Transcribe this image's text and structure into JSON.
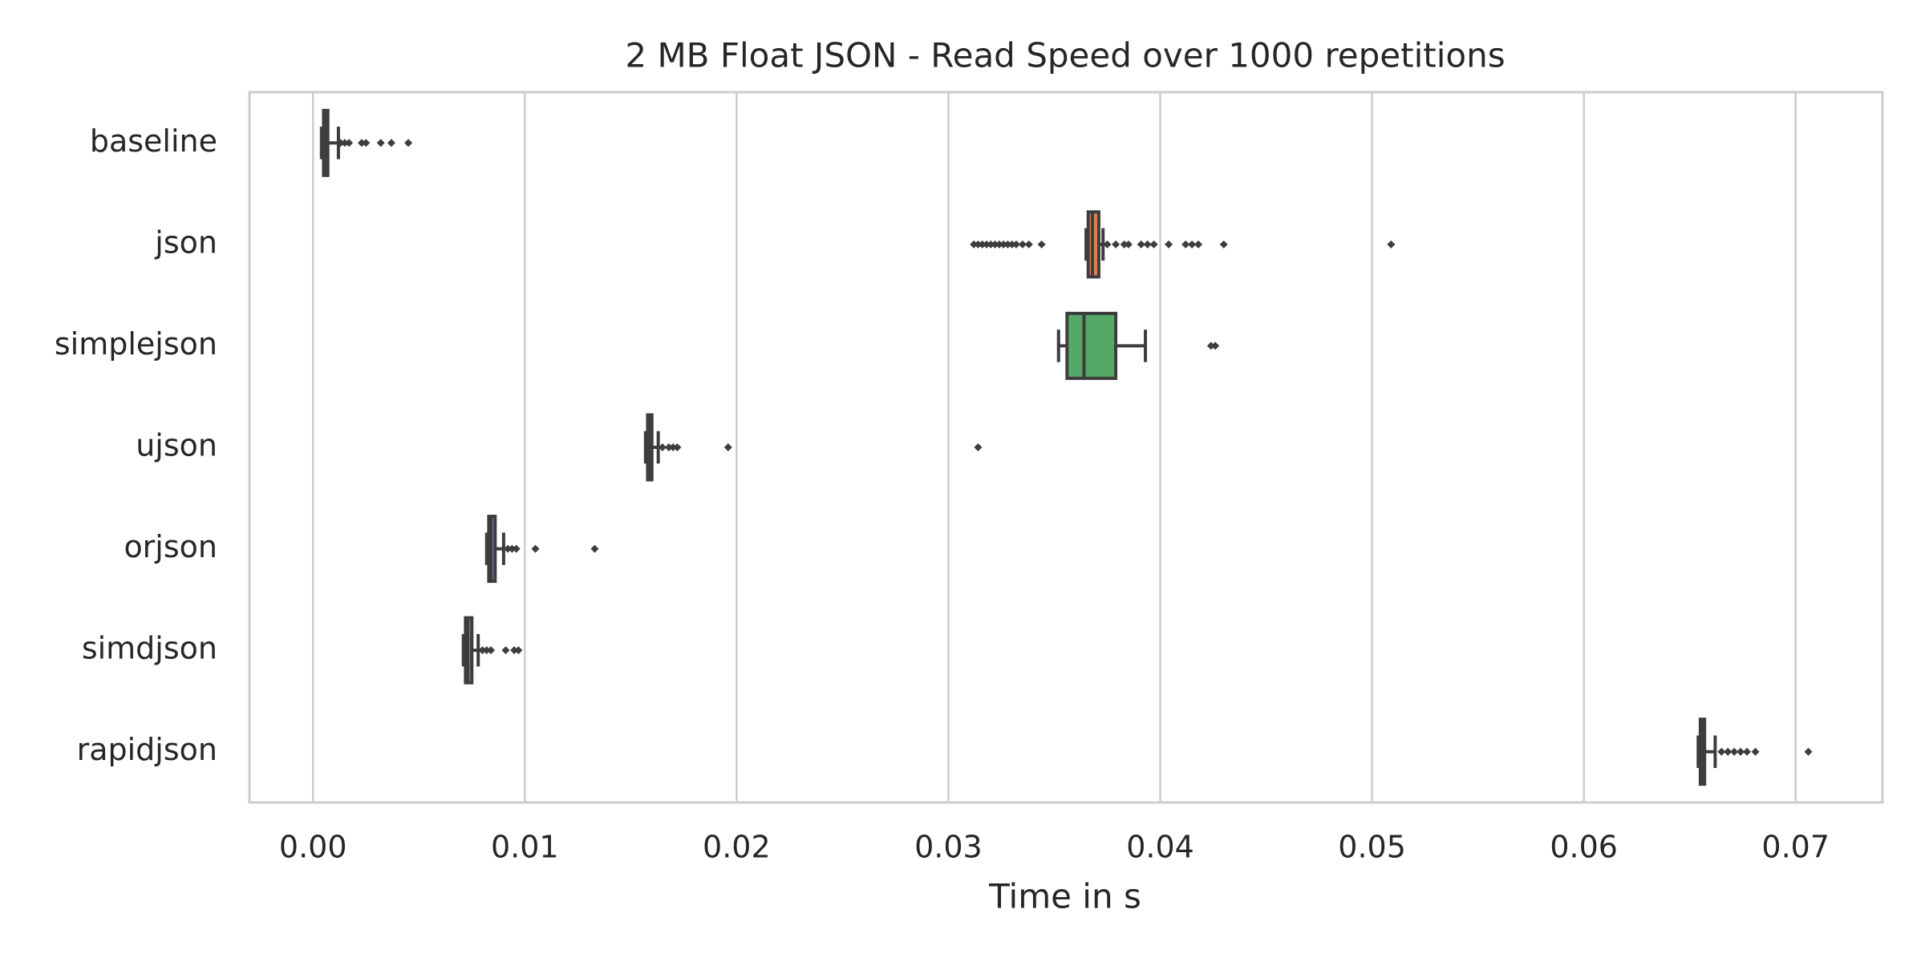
{
  "chart_data": {
    "type": "box",
    "orientation": "horizontal",
    "title": "2 MB Float JSON - Read Speed over 1000 repetitions",
    "x_label": "Time in s",
    "categories": [
      "baseline",
      "json",
      "simplejson",
      "ujson",
      "orjson",
      "simdjson",
      "rapidjson"
    ],
    "series": [
      {
        "name": "baseline",
        "color": "#4c72b0",
        "min": 0.0004,
        "q1": 0.0005,
        "median": 0.0006,
        "q3": 0.0007,
        "max": 0.0012,
        "outliers": [
          0.0013,
          0.0015,
          0.0017,
          0.0023,
          0.0025,
          0.0032,
          0.0037,
          0.0045
        ]
      },
      {
        "name": "json",
        "color": "#dd8452",
        "min": 0.0365,
        "q1": 0.0366,
        "median": 0.0368,
        "q3": 0.0371,
        "max": 0.0373,
        "outliers": [
          0.0312,
          0.0314,
          0.0316,
          0.0318,
          0.032,
          0.0322,
          0.0324,
          0.0326,
          0.0328,
          0.033,
          0.0332,
          0.0335,
          0.0338,
          0.0344,
          0.0375,
          0.0379,
          0.0383,
          0.0385,
          0.0391,
          0.0394,
          0.0397,
          0.0404,
          0.0412,
          0.0415,
          0.0418,
          0.043,
          0.0509
        ]
      },
      {
        "name": "simplejson",
        "color": "#55a868",
        "min": 0.0352,
        "q1": 0.0356,
        "median": 0.0364,
        "q3": 0.0379,
        "max": 0.0393,
        "outliers": [
          0.0424,
          0.0426
        ]
      },
      {
        "name": "ujson",
        "color": "#c44e52",
        "min": 0.0157,
        "q1": 0.0158,
        "median": 0.0159,
        "q3": 0.016,
        "max": 0.0163,
        "outliers": [
          0.0165,
          0.0168,
          0.017,
          0.0172,
          0.0196,
          0.0314
        ]
      },
      {
        "name": "orjson",
        "color": "#8172b3",
        "min": 0.0082,
        "q1": 0.0083,
        "median": 0.0084,
        "q3": 0.0086,
        "max": 0.009,
        "outliers": [
          0.0092,
          0.0094,
          0.0096,
          0.0105,
          0.0133
        ]
      },
      {
        "name": "simdjson",
        "color": "#937860",
        "min": 0.0071,
        "q1": 0.0072,
        "median": 0.0073,
        "q3": 0.0075,
        "max": 0.0078,
        "outliers": [
          0.008,
          0.0082,
          0.0084,
          0.0091,
          0.0095,
          0.0097
        ]
      },
      {
        "name": "rapidjson",
        "color": "#da8bc3",
        "min": 0.0654,
        "q1": 0.0655,
        "median": 0.0656,
        "q3": 0.0657,
        "max": 0.0662,
        "outliers": [
          0.0665,
          0.0668,
          0.0671,
          0.0674,
          0.0677,
          0.0681,
          0.0706
        ]
      }
    ],
    "xlim": [
      -0.003,
      0.0741
    ],
    "xticks": [
      {
        "value": 0,
        "label": "0.00"
      },
      0.01,
      0.02,
      0.03,
      0.04,
      0.05,
      0.06,
      0.07
    ],
    "grid": true,
    "stroke_color": "#3d3d3d"
  }
}
